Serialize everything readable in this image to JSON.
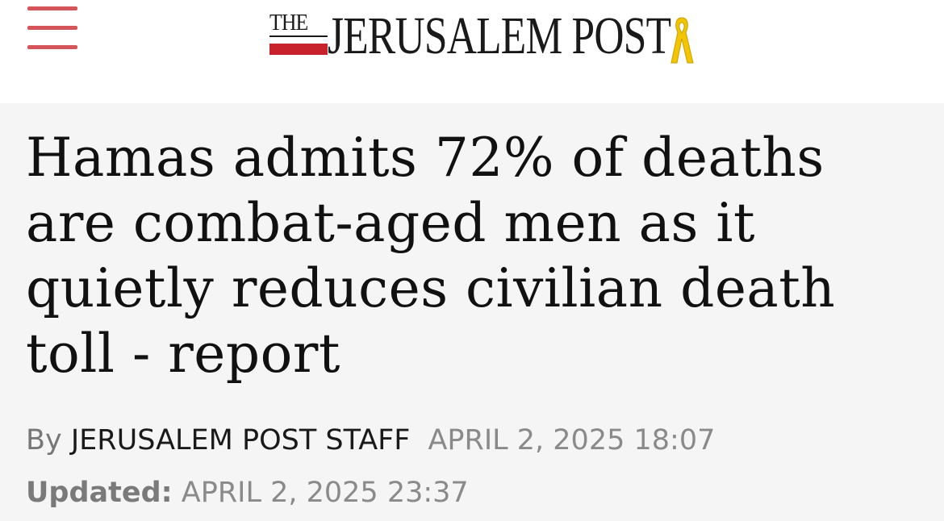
{
  "header": {
    "logo_the": "THE",
    "logo_word": "JERUSALEM POST",
    "ribbon_icon": "yellow-ribbon-icon",
    "menu_icon": "hamburger-menu-icon",
    "colors": {
      "menu": "#d4565b",
      "logo_red": "#c8232c",
      "ribbon": "#f2c500"
    }
  },
  "article": {
    "headline": "Hamas admits 72% of deaths are combat-aged men as it quietly reduces civilian death toll - report",
    "byline_prefix": "By ",
    "author": "JERUSALEM POST STAFF",
    "published": "APRIL 2, 2025 18:07",
    "updated_label": "Updated:",
    "updated": " APRIL 2, 2025 23:37"
  }
}
